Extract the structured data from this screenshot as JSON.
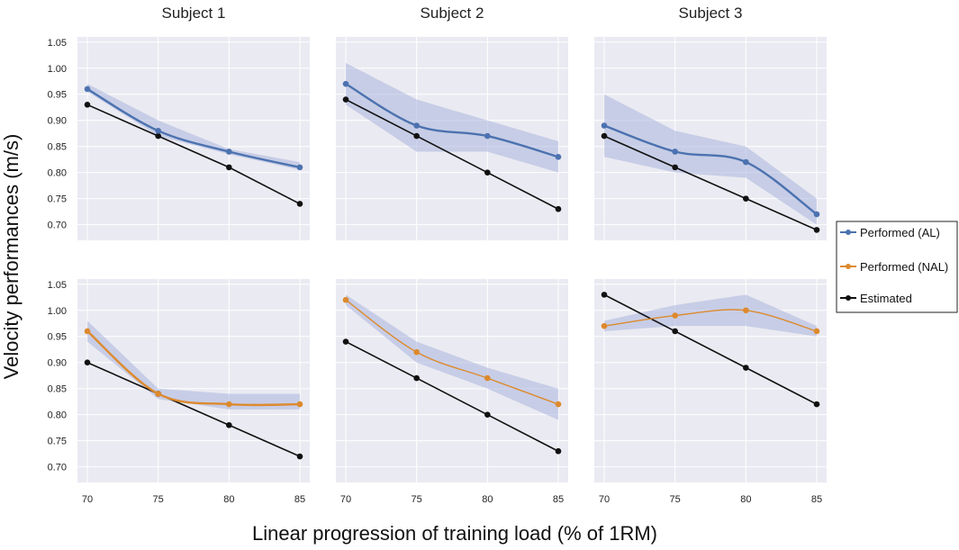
{
  "chart_data": {
    "type": "line",
    "xlabel": "Linear progression of training load (% of 1RM)",
    "ylabel": "Velocity performances (m/s)",
    "x": [
      70,
      75,
      80,
      85
    ],
    "x_ticks": [
      "70",
      "75",
      "80",
      "85"
    ],
    "y_ticks": [
      "0.70",
      "0.75",
      "0.80",
      "0.85",
      "0.90",
      "0.95",
      "1.00",
      "1.05"
    ],
    "ylim": [
      0.67,
      1.06
    ],
    "xlim": [
      69.3,
      85.7
    ],
    "grid": true,
    "legend": {
      "placement": "right",
      "entries": [
        {
          "label": "Performed (AL)",
          "color": "#4c72b0"
        },
        {
          "label": "Performed (NAL)",
          "color": "#dd8a2e"
        },
        {
          "label": "Estimated",
          "color": "#111111"
        }
      ]
    },
    "colors": {
      "panel_bg": "#eaeaf2",
      "band": "#a9b5dc",
      "grid": "#ffffff"
    },
    "panels": [
      {
        "title": "Subject 1",
        "row": 0,
        "col": 0,
        "performed": {
          "name": "Performed (AL)",
          "values": [
            0.96,
            0.88,
            0.84,
            0.81
          ],
          "lower": [
            0.955,
            0.87,
            0.835,
            0.805
          ],
          "upper": [
            0.97,
            0.9,
            0.845,
            0.82
          ]
        },
        "estimated": {
          "name": "Estimated",
          "values": [
            0.93,
            0.87,
            0.81,
            0.74
          ]
        }
      },
      {
        "title": "Subject 2",
        "row": 0,
        "col": 1,
        "performed": {
          "name": "Performed (AL)",
          "values": [
            0.97,
            0.89,
            0.87,
            0.83
          ],
          "lower": [
            0.93,
            0.84,
            0.84,
            0.8
          ],
          "upper": [
            1.01,
            0.94,
            0.9,
            0.86
          ]
        },
        "estimated": {
          "name": "Estimated",
          "values": [
            0.94,
            0.87,
            0.8,
            0.73
          ]
        }
      },
      {
        "title": "Subject 3",
        "row": 0,
        "col": 2,
        "performed": {
          "name": "Performed (AL)",
          "values": [
            0.89,
            0.84,
            0.82,
            0.72
          ],
          "lower": [
            0.83,
            0.8,
            0.79,
            0.7
          ],
          "upper": [
            0.95,
            0.88,
            0.85,
            0.75
          ]
        },
        "estimated": {
          "name": "Estimated",
          "values": [
            0.87,
            0.81,
            0.75,
            0.69
          ]
        }
      },
      {
        "title": "",
        "row": 1,
        "col": 0,
        "performed": {
          "name": "Performed (NAL)",
          "values": [
            0.96,
            0.84,
            0.82,
            0.82
          ],
          "lower": [
            0.94,
            0.83,
            0.81,
            0.81
          ],
          "upper": [
            0.98,
            0.85,
            0.84,
            0.84
          ]
        },
        "estimated": {
          "name": "Estimated",
          "values": [
            0.9,
            0.84,
            0.78,
            0.72
          ]
        }
      },
      {
        "title": "",
        "row": 1,
        "col": 1,
        "performed": {
          "name": "Performed (NAL)",
          "values": [
            1.02,
            0.92,
            0.87,
            0.82
          ],
          "lower": [
            1.01,
            0.9,
            0.85,
            0.79
          ],
          "upper": [
            1.03,
            0.94,
            0.89,
            0.85
          ]
        },
        "estimated": {
          "name": "Estimated",
          "values": [
            0.94,
            0.87,
            0.8,
            0.73
          ]
        }
      },
      {
        "title": "",
        "row": 1,
        "col": 2,
        "performed": {
          "name": "Performed (NAL)",
          "values": [
            0.97,
            0.99,
            1.0,
            0.96
          ],
          "lower": [
            0.96,
            0.97,
            0.97,
            0.95
          ],
          "upper": [
            0.98,
            1.01,
            1.03,
            0.97
          ]
        },
        "estimated": {
          "name": "Estimated",
          "values": [
            1.03,
            0.96,
            0.89,
            0.82
          ]
        }
      }
    ]
  }
}
